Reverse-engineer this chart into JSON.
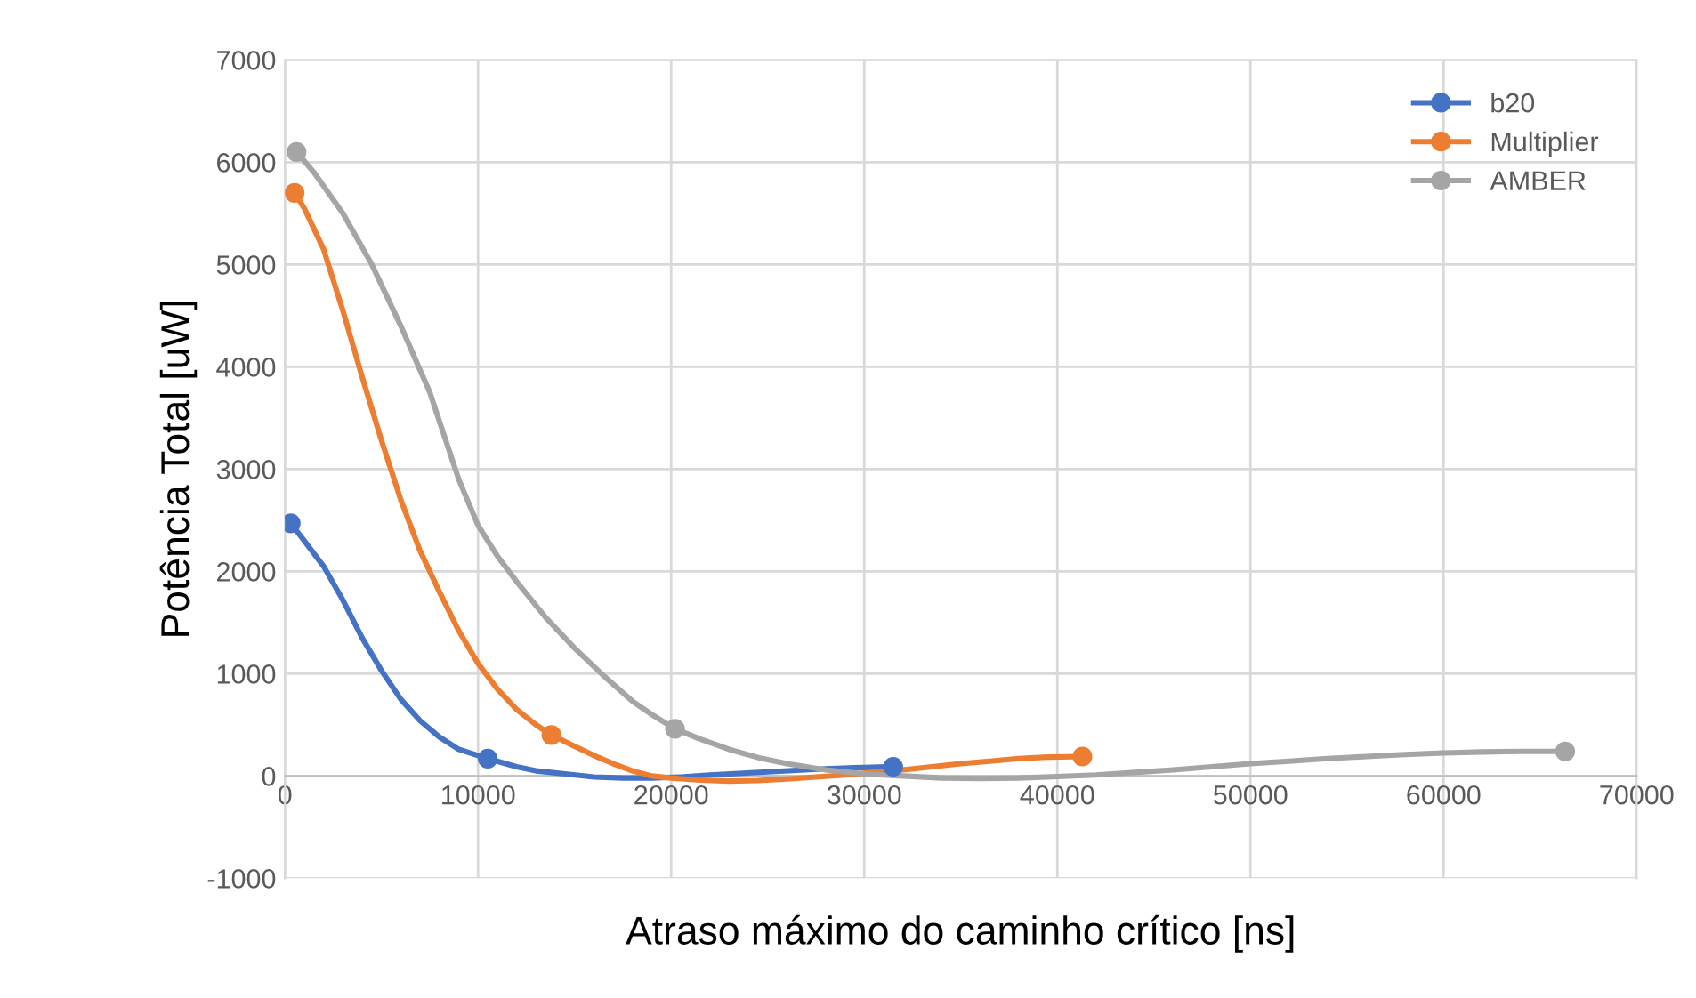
{
  "chart_data": {
    "type": "line",
    "xlabel": "Atraso máximo do caminho crítico [ns]",
    "ylabel": "Potência Total [uW]",
    "series": [
      {
        "name": "b20",
        "color": "#4472c4",
        "marker": "none",
        "x": [
          300,
          1000,
          2000,
          3000,
          4000,
          5000,
          6000,
          7000,
          8000,
          9000,
          10500,
          12000,
          13000,
          14500,
          16000,
          17500,
          19000,
          20500,
          22000,
          23500,
          25000,
          26500,
          28000,
          29500,
          31500
        ],
        "values": [
          2470,
          2300,
          2050,
          1720,
          1350,
          1030,
          750,
          540,
          380,
          260,
          170,
          90,
          50,
          20,
          -10,
          -20,
          -20,
          -10,
          10,
          25,
          40,
          55,
          70,
          80,
          90
        ]
      },
      {
        "name": "Multiplier",
        "color": "#ed7d31",
        "marker": "none",
        "x": [
          500,
          1000,
          2000,
          3000,
          4000,
          5000,
          6000,
          7000,
          8000,
          9000,
          10000,
          11000,
          12000,
          13000,
          13800,
          15000,
          16000,
          17000,
          18000,
          19000,
          20000,
          21500,
          23000,
          24500,
          26000,
          27500,
          29000,
          30500,
          32000,
          33500,
          35000,
          36500,
          38000,
          39500,
          41300
        ],
        "values": [
          5700,
          5550,
          5150,
          4550,
          3900,
          3280,
          2700,
          2200,
          1800,
          1420,
          1100,
          850,
          650,
          500,
          400,
          290,
          200,
          120,
          50,
          0,
          -20,
          -40,
          -50,
          -45,
          -30,
          -10,
          10,
          35,
          60,
          90,
          120,
          145,
          170,
          185,
          190
        ]
      },
      {
        "name": "AMBER",
        "color": "#a5a5a5",
        "marker": "none",
        "x": [
          600,
          1500,
          3000,
          4500,
          6000,
          7500,
          9000,
          10000,
          11000,
          12000,
          13500,
          15000,
          16500,
          18000,
          19000,
          20200,
          21500,
          23000,
          24500,
          26000,
          28000,
          30000,
          32000,
          34000,
          36000,
          38000,
          40000,
          42000,
          44000,
          46000,
          48000,
          50000,
          52000,
          54000,
          56000,
          58000,
          60000,
          62000,
          64000,
          66300
        ],
        "values": [
          6100,
          5900,
          5500,
          5000,
          4400,
          3750,
          2900,
          2450,
          2150,
          1900,
          1550,
          1250,
          980,
          730,
          600,
          460,
          360,
          260,
          180,
          120,
          60,
          20,
          0,
          -20,
          -25,
          -20,
          -5,
          10,
          35,
          60,
          90,
          120,
          145,
          170,
          190,
          210,
          225,
          235,
          240,
          240
        ]
      },
      {
        "type": "scatter",
        "color": "#4472c4",
        "x": [
          300,
          10500,
          31500
        ],
        "values": [
          2470,
          170,
          90
        ]
      },
      {
        "type": "scatter",
        "color": "#ed7d31",
        "x": [
          500,
          13800,
          41300
        ],
        "values": [
          5700,
          400,
          190
        ]
      },
      {
        "type": "scatter",
        "color": "#a5a5a5",
        "x": [
          600,
          20200,
          66300
        ],
        "values": [
          6100,
          460,
          240
        ]
      }
    ],
    "xlim": [
      0,
      70000
    ],
    "xticks": [
      0,
      10000,
      20000,
      30000,
      40000,
      50000,
      60000,
      70000
    ],
    "ylim": [
      -1000,
      7000
    ],
    "yticks": [
      -1000,
      0,
      1000,
      2000,
      3000,
      4000,
      5000,
      6000,
      7000
    ],
    "grid": true,
    "legend": "top right",
    "marker": "circle",
    "line_style": "solid"
  }
}
